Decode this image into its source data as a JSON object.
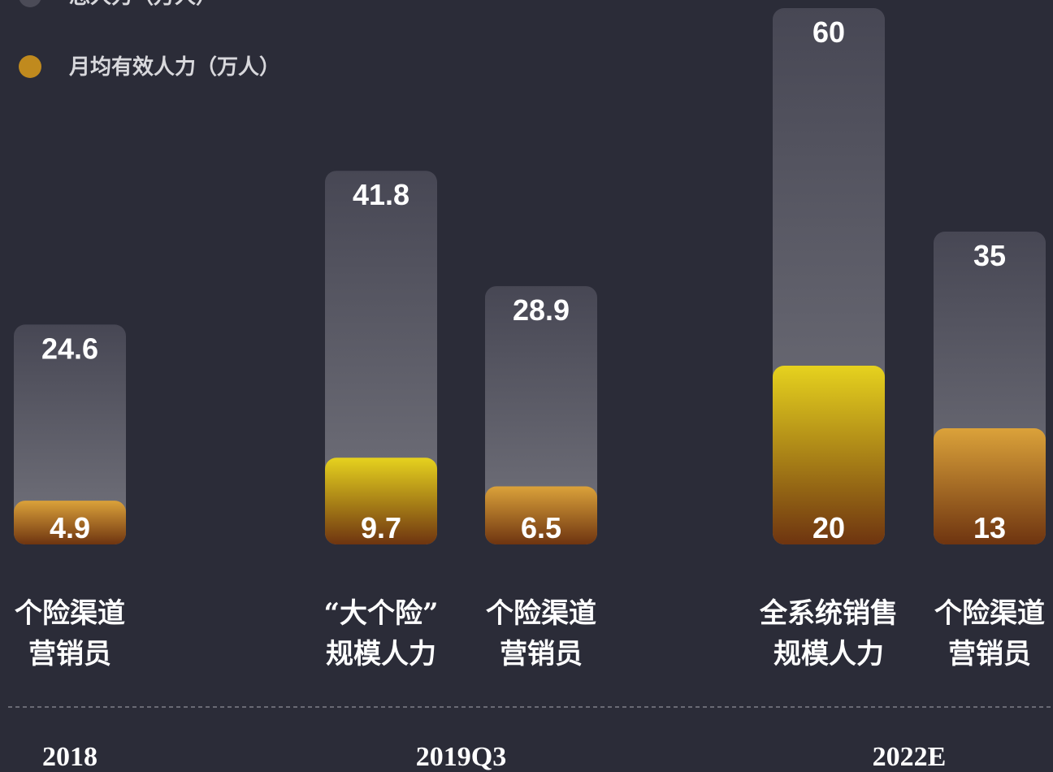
{
  "chart_data": {
    "type": "overlay-bar",
    "groups": [
      "2018",
      "2019Q3",
      "2022E"
    ],
    "categories": [
      [
        "个险渠道",
        "营销员"
      ],
      [
        "“大个险”",
        "规模人力"
      ],
      [
        "个险渠道",
        "营销员"
      ],
      [
        "全系统销售",
        "规模人力"
      ],
      [
        "个险渠道",
        "营销员"
      ]
    ],
    "category_group": [
      0,
      1,
      1,
      2,
      2
    ],
    "series": [
      {
        "name": "总人力（万人）",
        "color": "#4b4b57",
        "values": [
          24.6,
          41.8,
          28.9,
          60,
          35
        ]
      },
      {
        "name": "月均有效人力（万人）",
        "color": "#c08a1e",
        "colors": [
          "#dba23a",
          "#e6d21e",
          "#dba23a",
          "#e6d21e",
          "#dba23a"
        ],
        "values": [
          4.9,
          9.7,
          6.5,
          20,
          13
        ]
      }
    ]
  }
}
